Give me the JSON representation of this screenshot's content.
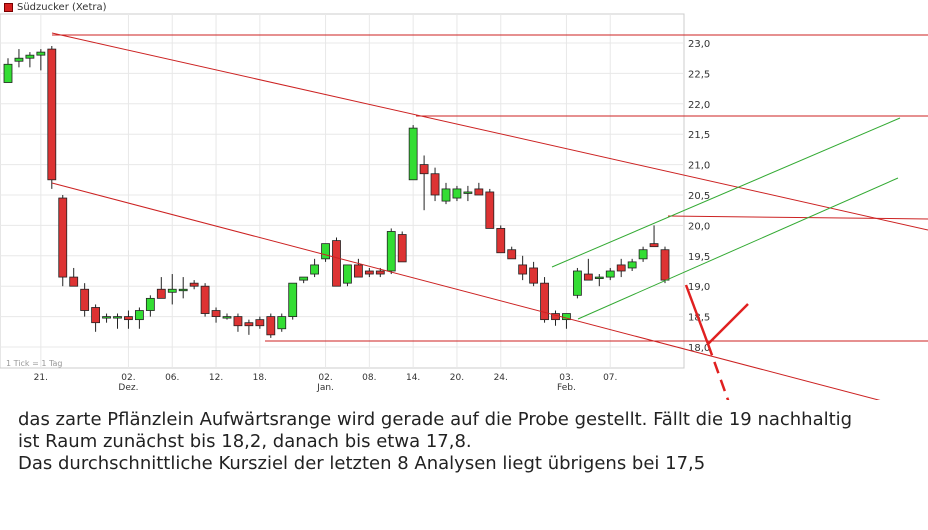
{
  "chart_data": {
    "type": "candlestick",
    "legend": {
      "label": "Südzucker (Xetra)",
      "color": "#d62020"
    },
    "tick_note": "1 Tick = 1 Tag",
    "ylim": [
      17.6,
      23.2
    ],
    "yticks": [
      "23,0",
      "22,5",
      "22,0",
      "21,5",
      "21,0",
      "20,5",
      "20,0",
      "19,5",
      "19,0",
      "18,5",
      "18,0"
    ],
    "ytick_values": [
      23.0,
      22.5,
      22.0,
      21.5,
      21.0,
      20.5,
      20.0,
      19.5,
      19.0,
      18.5,
      18.0
    ],
    "x_labels": [
      {
        "index": 3,
        "label": "21."
      },
      {
        "index": 11,
        "label": "02.\nDez."
      },
      {
        "index": 15,
        "label": "06."
      },
      {
        "index": 19,
        "label": "12."
      },
      {
        "index": 23,
        "label": "18."
      },
      {
        "index": 29,
        "label": "02.\nJan."
      },
      {
        "index": 33,
        "label": "08."
      },
      {
        "index": 37,
        "label": "14."
      },
      {
        "index": 41,
        "label": "20."
      },
      {
        "index": 45,
        "label": "24."
      },
      {
        "index": 51,
        "label": "03.\nFeb."
      },
      {
        "index": 55,
        "label": "07."
      }
    ],
    "candles": [
      {
        "o": 22.35,
        "h": 22.75,
        "l": 22.35,
        "c": 22.65
      },
      {
        "o": 22.7,
        "h": 22.9,
        "l": 22.6,
        "c": 22.75
      },
      {
        "o": 22.75,
        "h": 22.85,
        "l": 22.6,
        "c": 22.8
      },
      {
        "o": 22.8,
        "h": 22.9,
        "l": 22.55,
        "c": 22.85
      },
      {
        "o": 22.9,
        "h": 22.95,
        "l": 20.6,
        "c": 20.75
      },
      {
        "o": 20.45,
        "h": 20.5,
        "l": 19.0,
        "c": 19.15
      },
      {
        "o": 19.15,
        "h": 19.3,
        "l": 19.0,
        "c": 19.0
      },
      {
        "o": 18.95,
        "h": 19.05,
        "l": 18.5,
        "c": 18.6
      },
      {
        "o": 18.65,
        "h": 18.7,
        "l": 18.25,
        "c": 18.4
      },
      {
        "o": 18.5,
        "h": 18.55,
        "l": 18.4,
        "c": 18.5
      },
      {
        "o": 18.5,
        "h": 18.55,
        "l": 18.3,
        "c": 18.5
      },
      {
        "o": 18.5,
        "h": 18.6,
        "l": 18.3,
        "c": 18.45
      },
      {
        "o": 18.45,
        "h": 18.65,
        "l": 18.3,
        "c": 18.6
      },
      {
        "o": 18.6,
        "h": 18.85,
        "l": 18.5,
        "c": 18.8
      },
      {
        "o": 18.95,
        "h": 19.15,
        "l": 18.8,
        "c": 18.8
      },
      {
        "o": 18.9,
        "h": 19.2,
        "l": 18.7,
        "c": 18.95
      },
      {
        "o": 18.95,
        "h": 19.15,
        "l": 18.8,
        "c": 18.95
      },
      {
        "o": 19.05,
        "h": 19.1,
        "l": 18.95,
        "c": 19.0
      },
      {
        "o": 19.0,
        "h": 19.05,
        "l": 18.5,
        "c": 18.55
      },
      {
        "o": 18.6,
        "h": 18.65,
        "l": 18.4,
        "c": 18.5
      },
      {
        "o": 18.5,
        "h": 18.55,
        "l": 18.45,
        "c": 18.5
      },
      {
        "o": 18.5,
        "h": 18.55,
        "l": 18.25,
        "c": 18.35
      },
      {
        "o": 18.4,
        "h": 18.45,
        "l": 18.2,
        "c": 18.35
      },
      {
        "o": 18.45,
        "h": 18.5,
        "l": 18.3,
        "c": 18.35
      },
      {
        "o": 18.5,
        "h": 18.55,
        "l": 18.15,
        "c": 18.2
      },
      {
        "o": 18.3,
        "h": 18.55,
        "l": 18.25,
        "c": 18.5
      },
      {
        "o": 18.5,
        "h": 19.05,
        "l": 18.45,
        "c": 19.05
      },
      {
        "o": 19.1,
        "h": 19.15,
        "l": 19.05,
        "c": 19.15
      },
      {
        "o": 19.2,
        "h": 19.45,
        "l": 19.15,
        "c": 19.35
      },
      {
        "o": 19.45,
        "h": 19.7,
        "l": 19.4,
        "c": 19.7
      },
      {
        "o": 19.75,
        "h": 19.8,
        "l": 19.0,
        "c": 19.0
      },
      {
        "o": 19.05,
        "h": 19.35,
        "l": 19.0,
        "c": 19.35
      },
      {
        "o": 19.35,
        "h": 19.45,
        "l": 19.15,
        "c": 19.15
      },
      {
        "o": 19.25,
        "h": 19.3,
        "l": 19.15,
        "c": 19.2
      },
      {
        "o": 19.25,
        "h": 19.3,
        "l": 19.15,
        "c": 19.2
      },
      {
        "o": 19.25,
        "h": 19.95,
        "l": 19.2,
        "c": 19.9
      },
      {
        "o": 19.85,
        "h": 19.9,
        "l": 19.4,
        "c": 19.4
      },
      {
        "o": 20.75,
        "h": 21.65,
        "l": 20.75,
        "c": 21.6
      },
      {
        "o": 21.0,
        "h": 21.15,
        "l": 20.25,
        "c": 20.85
      },
      {
        "o": 20.85,
        "h": 20.95,
        "l": 20.4,
        "c": 20.5
      },
      {
        "o": 20.4,
        "h": 20.7,
        "l": 20.35,
        "c": 20.6
      },
      {
        "o": 20.45,
        "h": 20.65,
        "l": 20.4,
        "c": 20.6
      },
      {
        "o": 20.55,
        "h": 20.65,
        "l": 20.4,
        "c": 20.55
      },
      {
        "o": 20.6,
        "h": 20.7,
        "l": 20.5,
        "c": 20.5
      },
      {
        "o": 20.55,
        "h": 20.6,
        "l": 19.95,
        "c": 19.95
      },
      {
        "o": 19.95,
        "h": 20.0,
        "l": 19.55,
        "c": 19.55
      },
      {
        "o": 19.6,
        "h": 19.65,
        "l": 19.45,
        "c": 19.45
      },
      {
        "o": 19.35,
        "h": 19.5,
        "l": 19.1,
        "c": 19.2
      },
      {
        "o": 19.3,
        "h": 19.4,
        "l": 19.0,
        "c": 19.05
      },
      {
        "o": 19.05,
        "h": 19.15,
        "l": 18.4,
        "c": 18.45
      },
      {
        "o": 18.55,
        "h": 18.6,
        "l": 18.35,
        "c": 18.45
      },
      {
        "o": 18.45,
        "h": 18.55,
        "l": 18.3,
        "c": 18.55
      },
      {
        "o": 18.85,
        "h": 19.3,
        "l": 18.8,
        "c": 19.25
      },
      {
        "o": 19.2,
        "h": 19.45,
        "l": 19.1,
        "c": 19.1
      },
      {
        "o": 19.15,
        "h": 19.2,
        "l": 19.0,
        "c": 19.15
      },
      {
        "o": 19.15,
        "h": 19.3,
        "l": 19.1,
        "c": 19.25
      },
      {
        "o": 19.35,
        "h": 19.45,
        "l": 19.15,
        "c": 19.25
      },
      {
        "o": 19.3,
        "h": 19.45,
        "l": 19.25,
        "c": 19.4
      },
      {
        "o": 19.45,
        "h": 19.65,
        "l": 19.4,
        "c": 19.6
      },
      {
        "o": 19.7,
        "h": 20.0,
        "l": 19.65,
        "c": 19.65
      },
      {
        "o": 19.6,
        "h": 19.65,
        "l": 19.05,
        "c": 19.1
      }
    ],
    "colors": {
      "up": "#33dd33",
      "down": "#dd3333",
      "trendline": "#cc2222",
      "channel": "#33aa33",
      "grid": "#e8e8e8"
    },
    "grid": true
  },
  "caption": {
    "line1": "das zarte Pflänzlein Aufwärtsrange wird gerade auf die Probe gestellt. Fällt die 19 nachhaltig",
    "line2": "ist Raum zunächst bis 18,2, danach bis etwa 17,8.",
    "line3": "Das durchschnittliche Kursziel der letzten 8 Analysen liegt übrigens bei 17,5"
  }
}
